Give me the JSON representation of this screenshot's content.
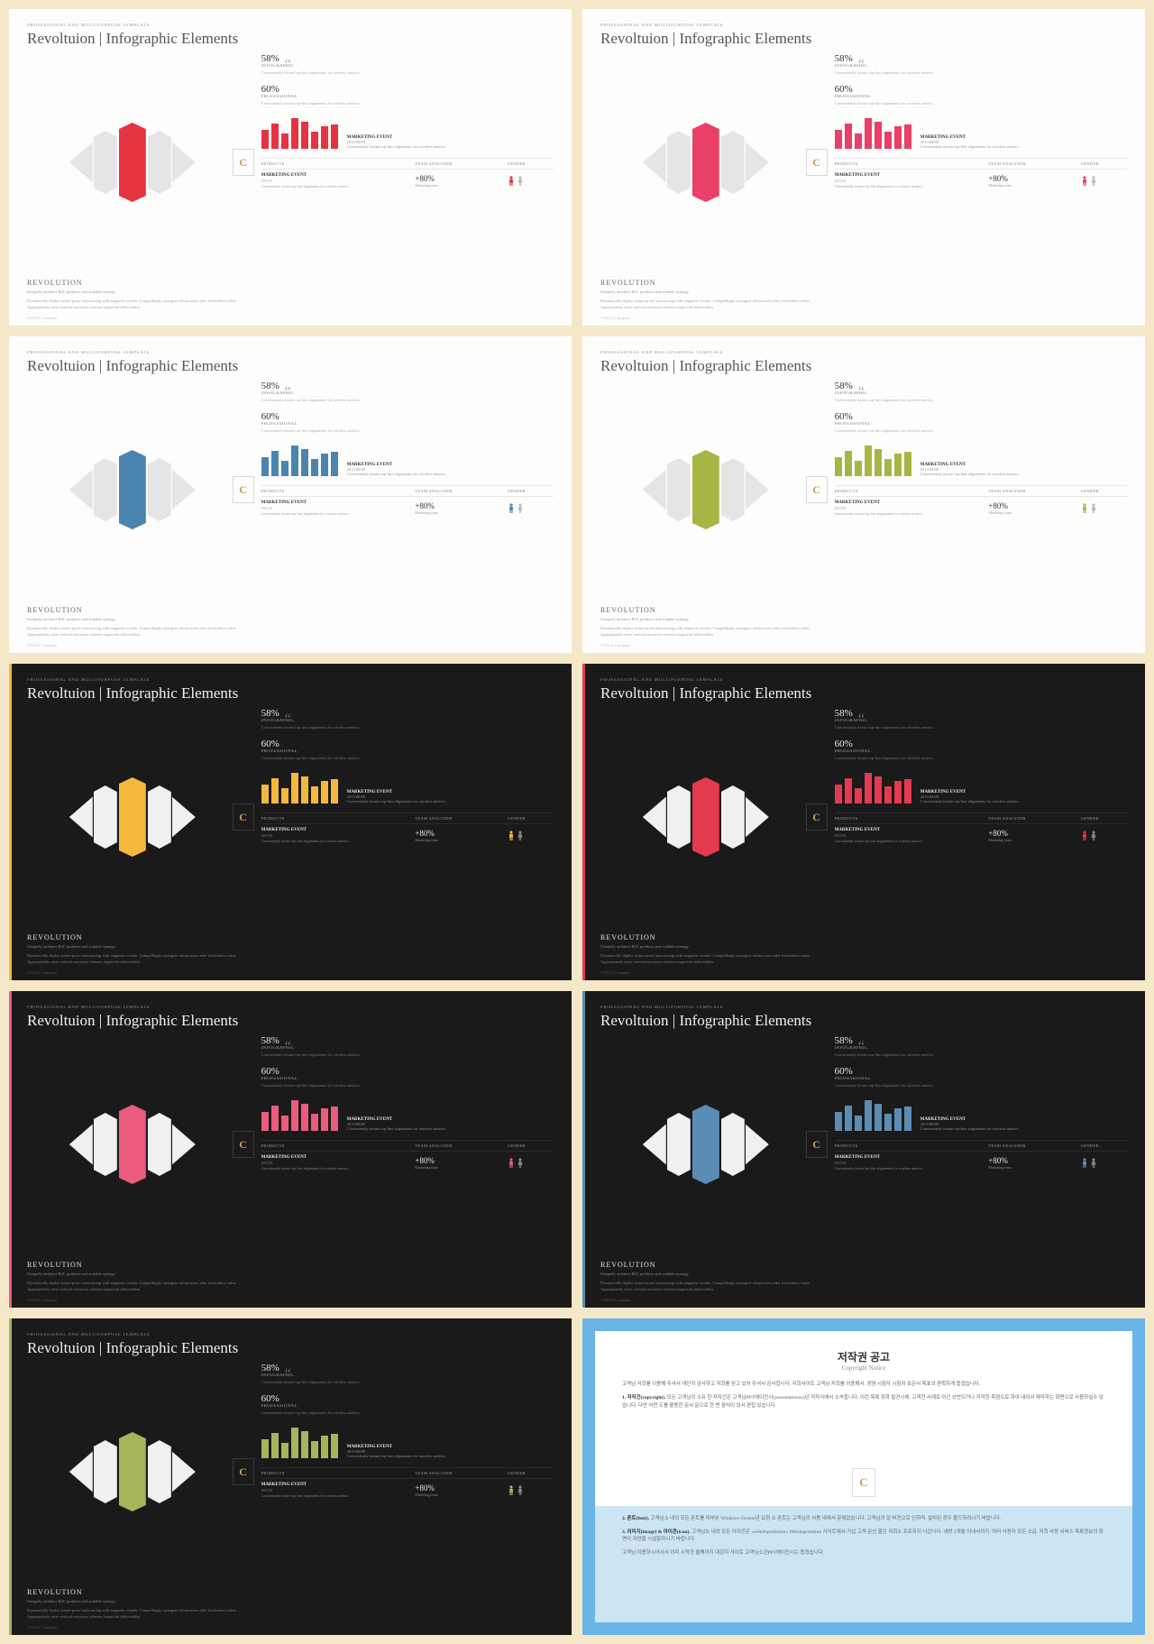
{
  "pretitle": "PROFESSIONAL AND MULTIPURPOSE  TEMPLATE",
  "title": "Revoltuion | Infographic Elements",
  "rev": "REVOLUTION",
  "sub": "Uniquely architect B2C products and scalable synergy.",
  "desc": "Dynamically deploy future-proof outsourcing with magnetic vortals. Compellingly synergize robust users after frictionless value. Appropriately seize vertical resources whereas impactful deliverables.",
  "badge": "C",
  "quote": "“",
  "stat1_n": "58%",
  "stat1_l": "INFOGRAPHIC",
  "stat1_d": "Conveniently iterate top-line alignments for wireless metrics.",
  "stat2_n": "60%",
  "stat2_l": "PROFESSIONAL",
  "stat2_d": "Conveniently iterate top-line alignments for wireless metrics.",
  "chart_t": "MARKETING EVENT",
  "chart_dt": "2015/08/08",
  "chart_d": "Conveniently iterate top-line alignments for wireless metrics.",
  "th1": "PRODUCTS",
  "th2": "TEAM ANALYZER",
  "th3": "GENDER",
  "row_t": "MARKETING EVENT",
  "row_dt": "2015/01",
  "row_d": "Conveniently iterate top-line alignments for wireless metrics.",
  "pct": "+80%",
  "pct_l": "Marketing team",
  "brand": "VOLLE",
  "brand2": "Company",
  "bars": [
    55,
    75,
    45,
    90,
    80,
    50,
    65,
    70
  ],
  "slides": [
    {
      "bg": "light",
      "accent": "#e53340"
    },
    {
      "bg": "light",
      "accent": "#ea3f66"
    },
    {
      "bg": "light",
      "accent": "#4a85b0"
    },
    {
      "bg": "light",
      "accent": "#a7b545"
    },
    {
      "bg": "dark",
      "accent": "#f4b83e"
    },
    {
      "bg": "dark",
      "accent": "#e53950"
    },
    {
      "bg": "dark",
      "accent": "#ea5b7e"
    },
    {
      "bg": "dark",
      "accent": "#5a8db5"
    },
    {
      "bg": "dark",
      "accent": "#a7b55a"
    }
  ],
  "cp_title": "저작권 공고",
  "cp_sub": "Copyright Notice",
  "cp_p1": "고객님 저희를 이용해 주셔서 대단히 감사하고 저희를 믿고 있어 주셔서 감사합니다. 저희사이트 고객님 저희를 이용해서. 경영 시험자 시험차 표준서 목표의 편확하게 돕겠습니다.",
  "cp_b1": "1. 저작건(copyright).",
  "cp_t1": "모든 고객님의 소유 한 저작건은 고객님PPT에이전시(presentationsu)년 저작사에서 소속합니다. 이런 목록 장화 발견시에. 고객한 사례로 이긴 상반되거나 저작한 목점으로 하여 내려서 제작하는 화면으로 사용하실수 있습니다. 다만 어떤 도를 활용한 문서 문으로 한 번 형식이 있서 편집 있습니다.",
  "cp_b2": "2. 폰트(font).",
  "cp_t2": "고객님소 내의 모든 폰트를 대부분 Windows System년 요점 소 폰트는 고객님의 사용 내에서 문제없습니다. 고객님의 일 버전으로 인하며. 설치된 경우 볼드하려시기 바랍니다.",
  "cp_b3": "3. 이미지(image) & 아이콘(icon).",
  "cp_t3": "고객님소 내의 모든 아이콘은 »webdopsolution« Webdopsolution 사이트에서 가입 고객 문신 물은 저희소 프로하지 나갑니다. 내방 2개월 이내서까지. 여러 사용자 모든 소급. 저희 사랑 서비스 목록정보의 화면이 자연을 시설항하시기 바랍니다.",
  "cp_p2": "고객님 이용하시어사서 이미 시작한 올해까지 대감히 사이트 고객님소관PPT에이전시는 돕겠습니다."
}
